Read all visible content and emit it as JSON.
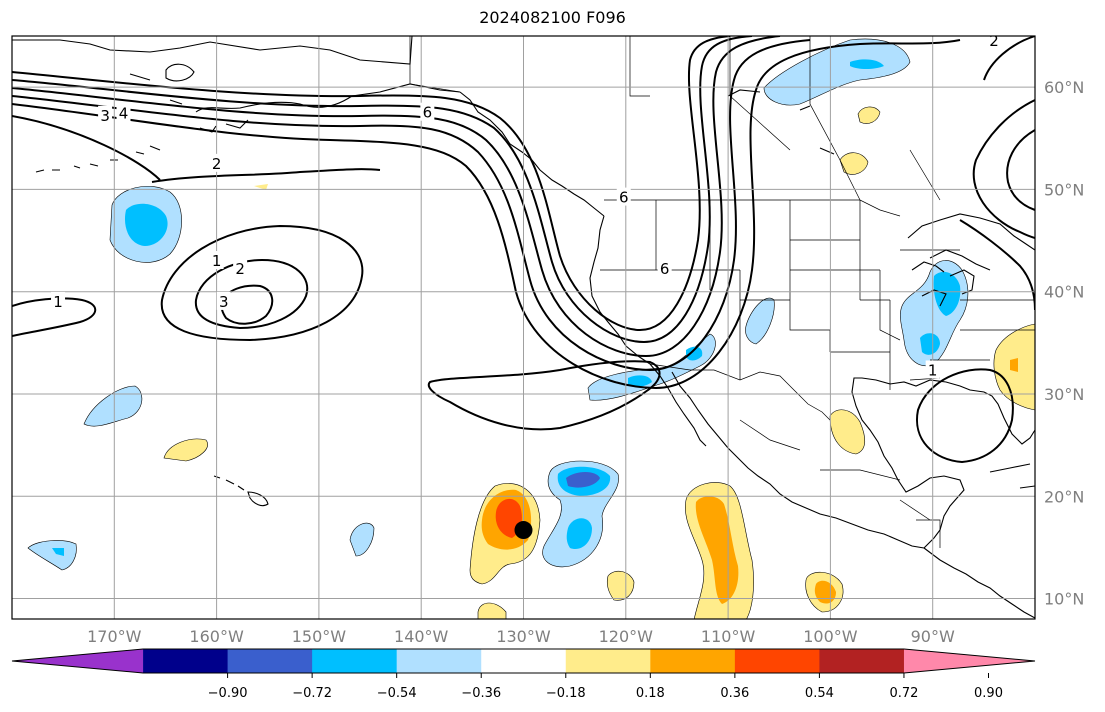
{
  "title": "2024082100 F096",
  "map": {
    "projection": "PlateCarree",
    "extent": {
      "lon_min": -180,
      "lon_max": -80,
      "lat_min": 8,
      "lat_max": 65
    },
    "grid_lons": [
      -170,
      -160,
      -150,
      -140,
      -130,
      -120,
      -110,
      -100,
      -90
    ],
    "grid_lats": [
      10,
      20,
      30,
      40,
      50,
      60
    ],
    "lon_labels": [
      "170°W",
      "160°W",
      "150°W",
      "140°W",
      "130°W",
      "120°W",
      "110°W",
      "100°W",
      "90°W"
    ],
    "lat_labels": [
      "10°N",
      "20°N",
      "30°N",
      "40°N",
      "50°N",
      "60°N"
    ],
    "storm_marker": {
      "lon": -130.0,
      "lat": 16.7,
      "color": "#000000"
    }
  },
  "contour_labels": [
    {
      "text": "3",
      "lon": -170.9,
      "lat": 57.2
    },
    {
      "text": "4",
      "lon": -169.1,
      "lat": 57.4
    },
    {
      "text": "2",
      "lon": -160.0,
      "lat": 52.5
    },
    {
      "text": "6",
      "lon": -139.4,
      "lat": 57.5
    },
    {
      "text": "1",
      "lon": -175.5,
      "lat": 39.0
    },
    {
      "text": "1",
      "lon": -160.0,
      "lat": 43.0
    },
    {
      "text": "2",
      "lon": -157.7,
      "lat": 42.2
    },
    {
      "text": "3",
      "lon": -159.3,
      "lat": 39.0
    },
    {
      "text": "6",
      "lon": -120.2,
      "lat": 49.2
    },
    {
      "text": "6",
      "lon": -116.2,
      "lat": 42.2
    },
    {
      "text": "1",
      "lon": -90.0,
      "lat": 32.3
    },
    {
      "text": "2",
      "lon": -84.0,
      "lat": 64.5
    }
  ],
  "colorbar": {
    "colors": [
      "#9932cc",
      "#00008b",
      "#3a5fcd",
      "#00bfff",
      "#b0e0ff",
      "#ffffff",
      "#ffec8b",
      "#ffa500",
      "#ff4500",
      "#b22222",
      "#ff88aa"
    ],
    "levels": [
      -0.9,
      -0.72,
      -0.54,
      -0.36,
      -0.18,
      0.18,
      0.36,
      0.54,
      0.72,
      0.9
    ],
    "tick_labels": [
      "−0.90",
      "−0.72",
      "−0.54",
      "−0.36",
      "−0.18",
      "0.18",
      "0.36",
      "0.54",
      "0.72",
      "0.90"
    ]
  }
}
